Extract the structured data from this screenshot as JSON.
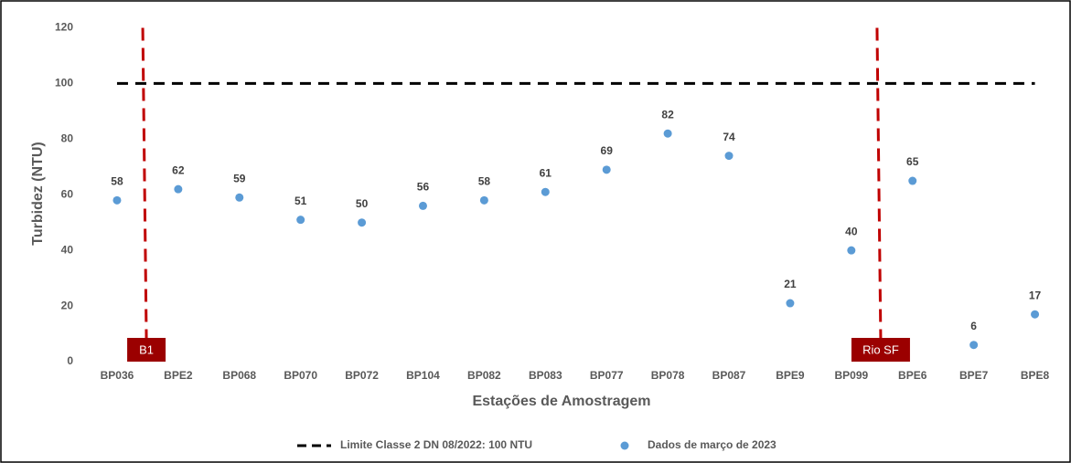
{
  "chart_data": {
    "type": "scatter",
    "x_label": "Estações de Amostragem",
    "y_label": "Turbidez (NTU)",
    "categories": [
      "BP036",
      "BPE2",
      "BP068",
      "BP070",
      "BP072",
      "BP104",
      "BP082",
      "BP083",
      "BP077",
      "BP078",
      "BP087",
      "BPE9",
      "BP099",
      "BPE6",
      "BPE7",
      "BPE8"
    ],
    "series": [
      {
        "name": "Dados de março de 2023",
        "color": "#5b9bd5",
        "values": [
          58,
          62,
          59,
          51,
          50,
          56,
          58,
          61,
          69,
          82,
          74,
          21,
          40,
          65,
          6,
          17
        ]
      }
    ],
    "reference_lines": [
      {
        "name": "Limite Classe 2 DN 08/2022: 100 NTU",
        "value": 100,
        "color": "#000000"
      }
    ],
    "markers": [
      {
        "label": "B1",
        "color": "#c00000"
      },
      {
        "label": "Rio SF",
        "color": "#c00000"
      }
    ],
    "ylim": [
      0,
      120
    ],
    "yticks": [
      0,
      20,
      40,
      60,
      80,
      100,
      120
    ],
    "grid": false
  }
}
